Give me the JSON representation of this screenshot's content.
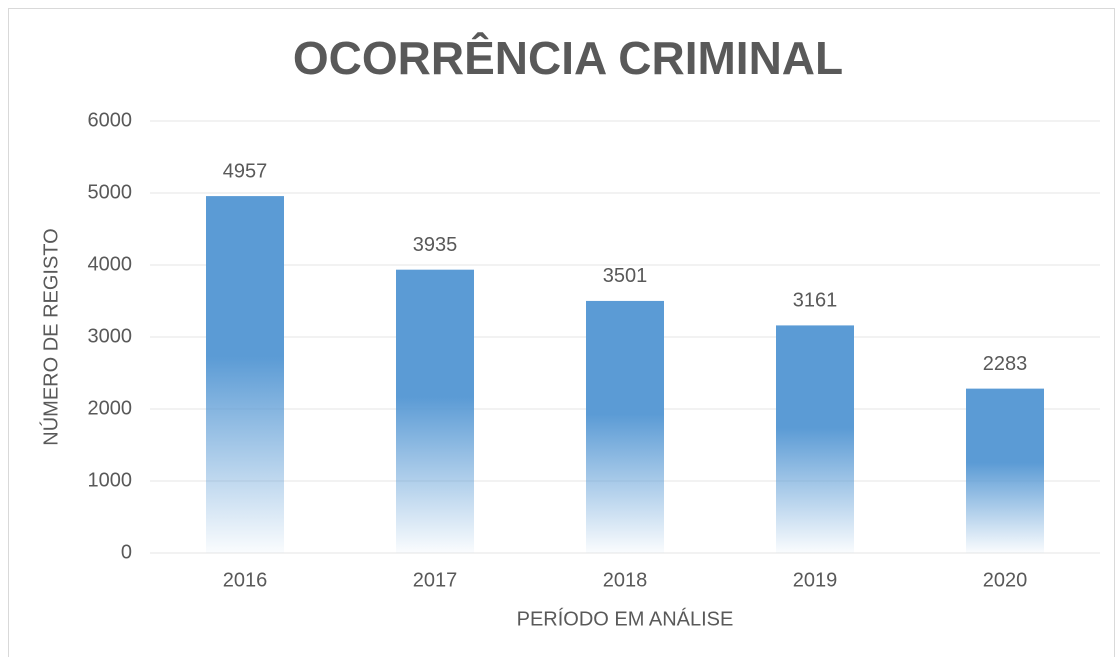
{
  "chart_data": {
    "type": "bar",
    "title": "OCORRÊNCIA CRIMINAL",
    "x_label": "PERÍODO EM ANÁLISE",
    "y_label": "NÚMERO DE REGISTO",
    "categories": [
      "2016",
      "2017",
      "2018",
      "2019",
      "2020"
    ],
    "values": [
      4957,
      3935,
      3501,
      3161,
      2283
    ],
    "color": "#5b9bd5",
    "ylim": [
      0,
      6000
    ],
    "yticks": [
      0,
      1000,
      2000,
      3000,
      4000,
      5000,
      6000
    ],
    "grid": true
  }
}
